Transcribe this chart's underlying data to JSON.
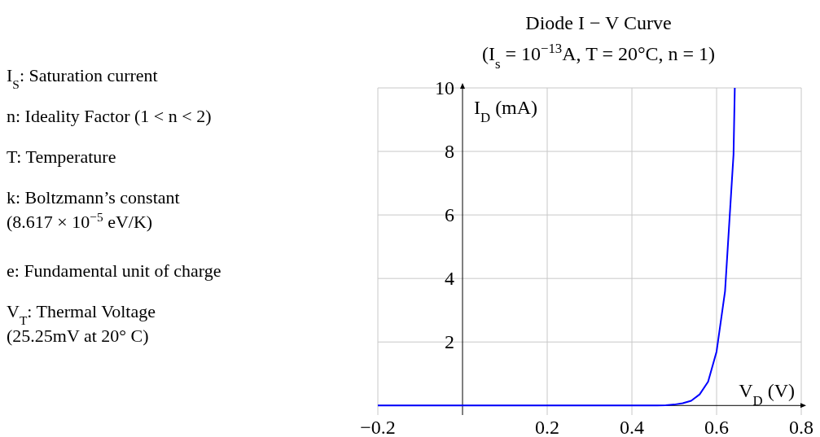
{
  "chart_data": {
    "type": "line",
    "title": "Diode I − V Curve",
    "subtitle": "(I$_{s}$ = 10$^{−13}$A, T = 20°C, n = 1)",
    "xlabel": "V$_{D}$ (V)",
    "ylabel": "I$_{D}$ (mA)",
    "annotations": [
      "I$_{S}$: Saturation current",
      "n: Ideality Factor (1 < n < 2)",
      "T: Temperature",
      "k: Boltzmann’s constant (8.617 × 10$^{−5}$ eV/K)",
      "e: Fundamental unit of charge",
      "V$_{T}$: Thermal Voltage (25.25mV at 20° C)"
    ],
    "xlim": [
      -0.2,
      0.8
    ],
    "ylim": [
      -0.3,
      10
    ],
    "xticks": [
      {
        "value": -0.2,
        "label": "−0.2"
      },
      0.2,
      0.4,
      0.6,
      0.8
    ],
    "yticks": [
      2,
      4,
      6,
      8,
      10
    ],
    "grid": true,
    "marker": "none",
    "line_style": "solid",
    "series": [
      {
        "color": "#0000ff",
        "x": [
          -0.2,
          0,
          0.2,
          0.4,
          0.46,
          0.48,
          0.5,
          0.52,
          0.54,
          0.56,
          0.58,
          0.6,
          0.62,
          0.64,
          0.643
        ],
        "values": [
          0,
          0,
          0,
          0,
          0,
          0.01,
          0.03,
          0.07,
          0.15,
          0.35,
          0.75,
          1.7,
          3.6,
          7.9,
          10
        ]
      }
    ]
  }
}
